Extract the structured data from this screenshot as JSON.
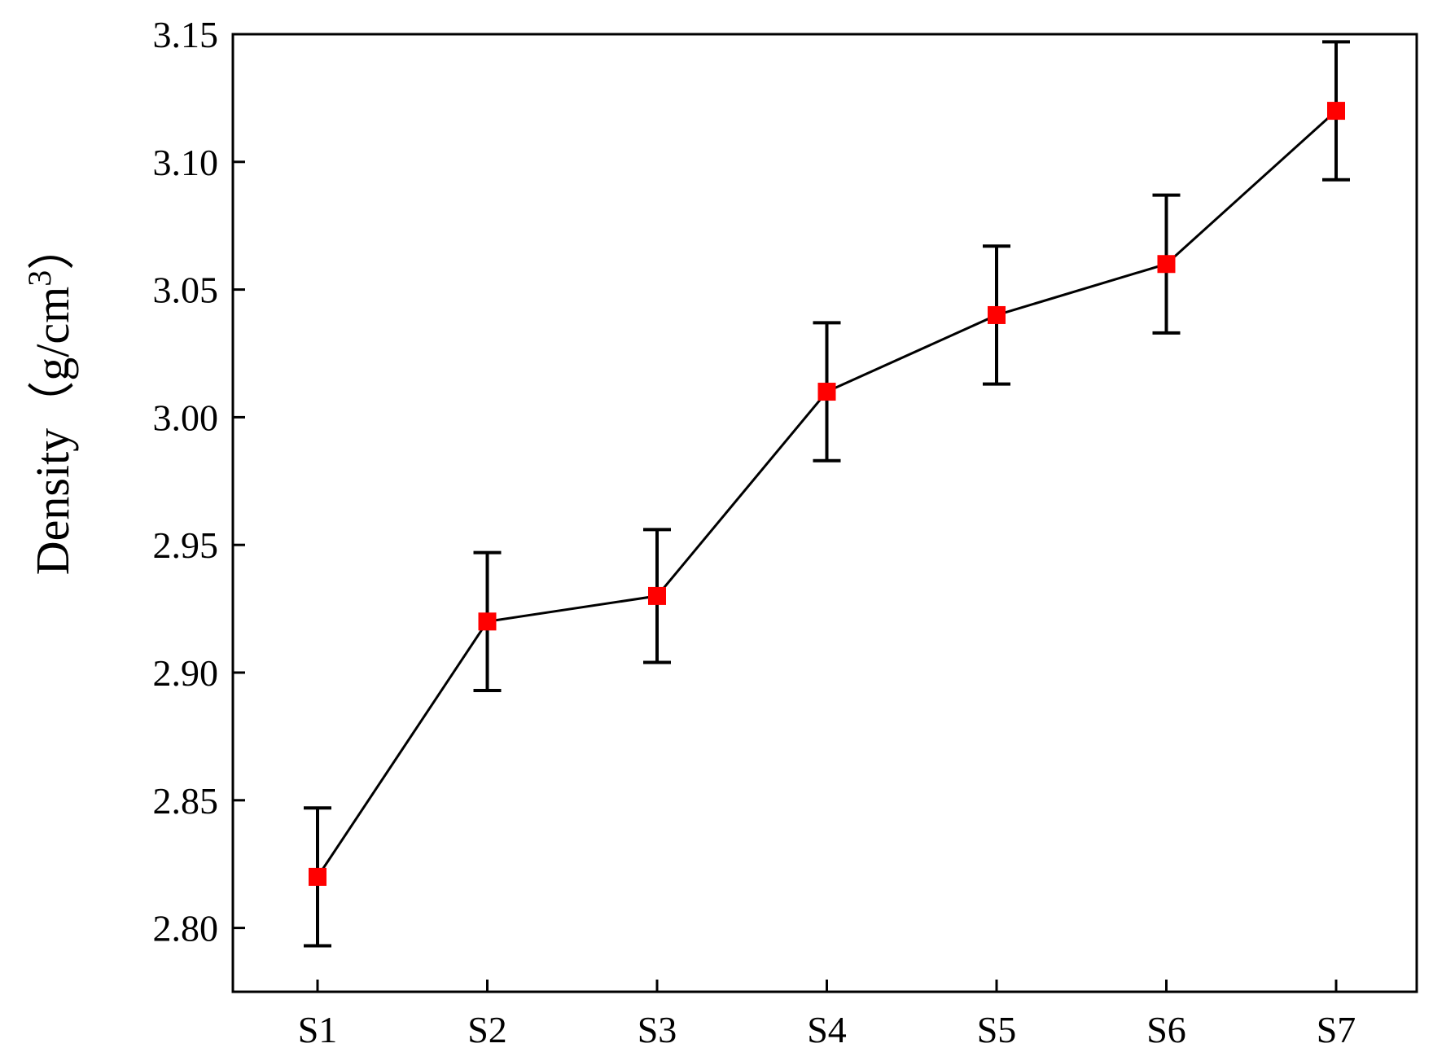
{
  "chart_data": {
    "type": "line",
    "title": "",
    "xlabel": "",
    "ylabel_main": "Density",
    "ylabel_unit": "（g/cm",
    "ylabel_sup": "3",
    "ylabel_close": "）",
    "categories": [
      "S1",
      "S2",
      "S3",
      "S4",
      "S5",
      "S6",
      "S7"
    ],
    "series": [
      {
        "values": [
          2.82,
          2.92,
          2.93,
          3.01,
          3.04,
          3.06,
          3.12
        ],
        "error": [
          0.027,
          0.027,
          0.026,
          0.027,
          0.027,
          0.027,
          0.027
        ],
        "line_color": "#000000",
        "marker_color": "#ff0000",
        "marker": "square"
      }
    ],
    "ylim": [
      2.775,
      3.15
    ],
    "yticks": [
      2.8,
      2.85,
      2.9,
      2.95,
      3.0,
      3.05,
      3.1,
      3.15
    ],
    "ytick_labels": [
      "2.80",
      "2.85",
      "2.90",
      "2.95",
      "3.00",
      "3.05",
      "3.10",
      "3.15"
    ],
    "grid": false,
    "legend": "none"
  }
}
